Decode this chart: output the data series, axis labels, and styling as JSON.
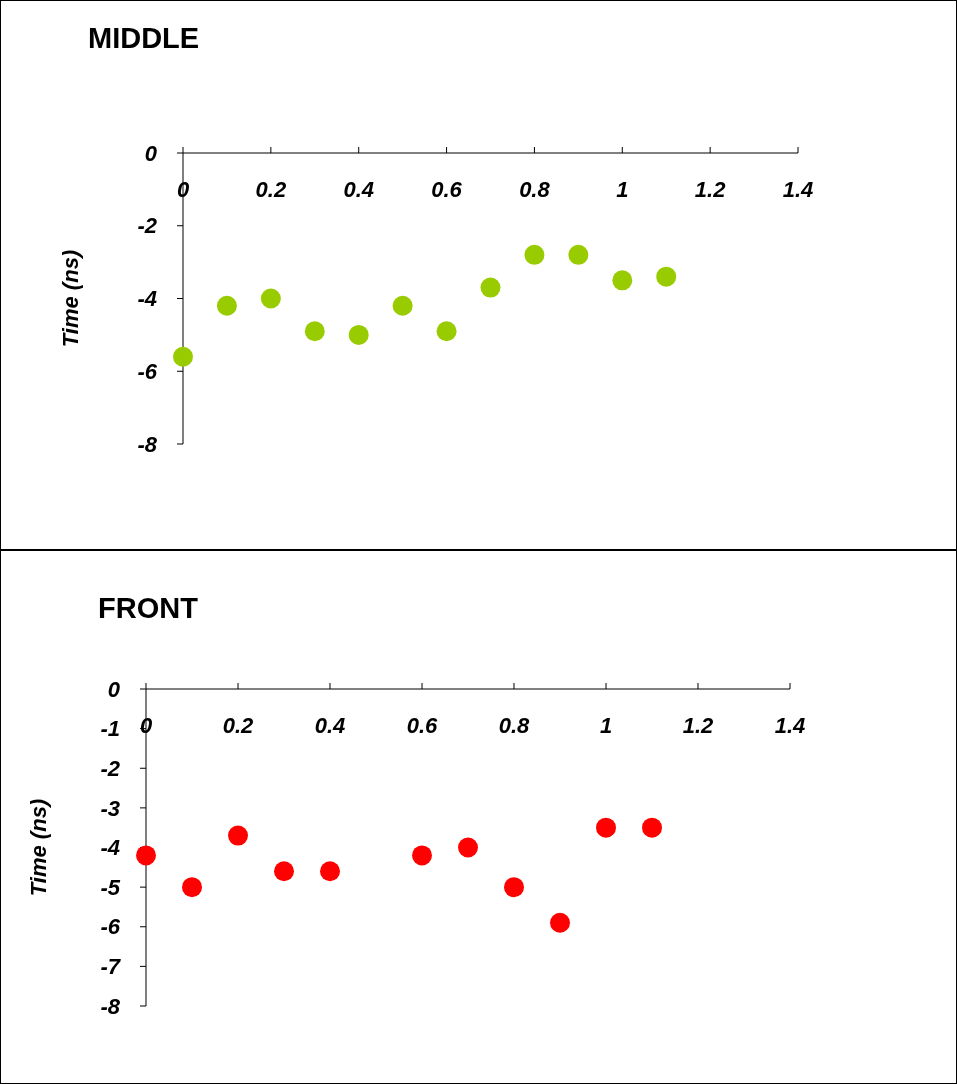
{
  "chart_data": [
    {
      "type": "scatter",
      "title": "MIDDLE",
      "ylabel": "Time (ns)",
      "xlim": [
        0,
        1.4
      ],
      "xticks": [
        0,
        0.2,
        0.4,
        0.6,
        0.8,
        1,
        1.2,
        1.4
      ],
      "ylim": [
        -8,
        0
      ],
      "yticks": [
        -8,
        -6,
        -4,
        -2,
        0
      ],
      "marker": "circle",
      "series": [
        {
          "color": "#99cc00",
          "x": [
            0,
            0.1,
            0.2,
            0.3,
            0.4,
            0.5,
            0.6,
            0.7,
            0.8,
            0.9,
            1,
            1.1
          ],
          "values": [
            -5.6,
            -4.2,
            -4.0,
            -4.9,
            -5.0,
            -4.2,
            -4.9,
            -3.7,
            -2.8,
            -2.8,
            -3.5,
            -3.4
          ]
        }
      ]
    },
    {
      "type": "scatter",
      "title": "FRONT",
      "ylabel": "Time (ns)",
      "xlim": [
        0,
        1.4
      ],
      "xticks": [
        0,
        0.2,
        0.4,
        0.6,
        0.8,
        1,
        1.2,
        1.4
      ],
      "ylim": [
        -8,
        0
      ],
      "yticks": [
        -8,
        -7,
        -6,
        -5,
        -4,
        -3,
        -2,
        -1,
        0
      ],
      "marker": "circle",
      "series": [
        {
          "color": "#ff0000",
          "x": [
            0,
            0.1,
            0.2,
            0.3,
            0.4,
            0.6,
            0.7,
            0.8,
            0.9,
            1,
            1.1
          ],
          "values": [
            -4.2,
            -5.0,
            -3.7,
            -4.6,
            -4.6,
            -4.2,
            -4.0,
            -5.0,
            -5.9,
            -3.5,
            -3.5
          ]
        }
      ]
    }
  ]
}
